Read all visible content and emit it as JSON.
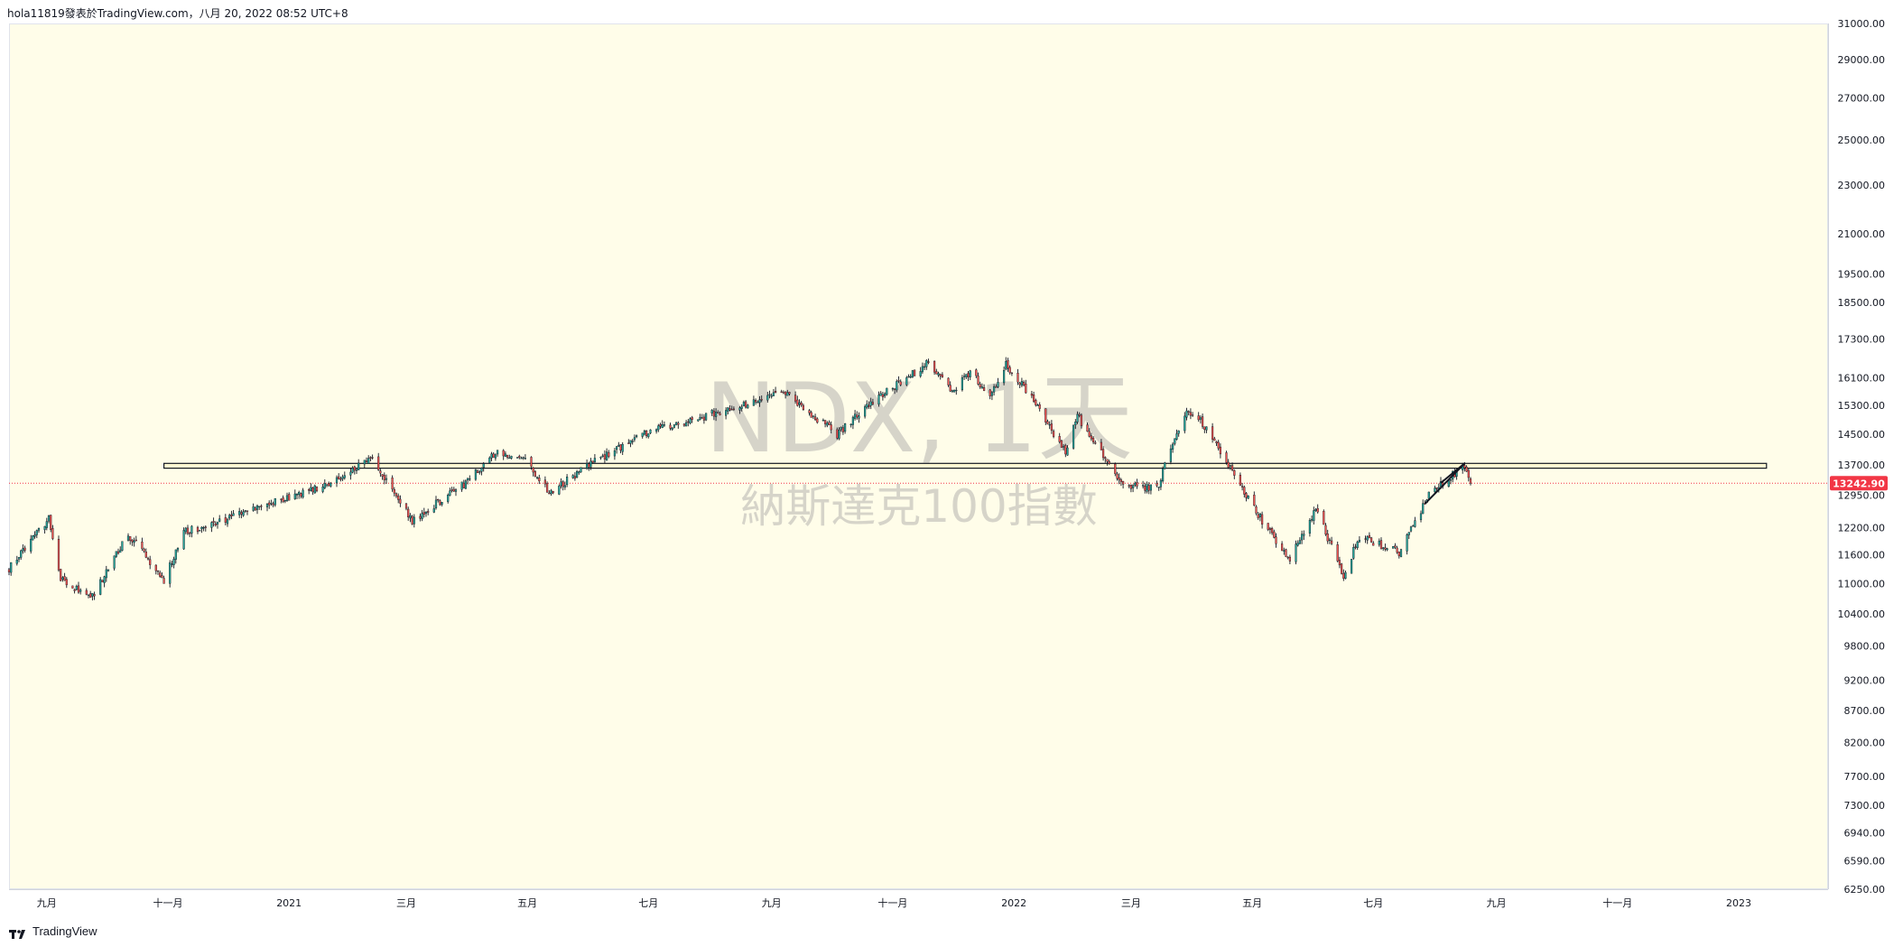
{
  "header": {
    "caption": "hola11819發表於TradingView.com，八月 20, 2022 08:52 UTC+8"
  },
  "footer": {
    "brand": "TradingView",
    "logo_icon": "tradingview-logo-icon"
  },
  "colors": {
    "background": "#fffde9",
    "up_candle": "#26a69a",
    "down_candle": "#ef5350",
    "wick": "#131722",
    "last_price_badge": "#f23645",
    "last_price_line": "#f23645",
    "horizontal_band": "#131722"
  },
  "chart_data": {
    "type": "candlestick",
    "symbol": "NDX",
    "interval": "1天",
    "description": "納斯達克100指數",
    "last_price": 13242.9,
    "last_price_label": "13242.90",
    "y_scale": "log",
    "ylim": [
      6250,
      31000
    ],
    "xlim": [
      "2020-08-13",
      "2023-02-15"
    ],
    "price_ticks": [
      "31000.00",
      "29000.00",
      "27000.00",
      "25000.00",
      "23000.00",
      "21000.00",
      "19500.00",
      "18500.00",
      "17300.00",
      "16100.00",
      "15300.00",
      "14500.00",
      "13700.00",
      "12950.00",
      "12200.00",
      "11600.00",
      "11000.00",
      "10400.00",
      "9800.00",
      "9200.00",
      "8700.00",
      "8200.00",
      "7700.00",
      "7300.00",
      "6940.00",
      "6590.00",
      "6250.00"
    ],
    "time_ticks": [
      {
        "label": "九月",
        "date": "2020-09-01"
      },
      {
        "label": "十一月",
        "date": "2020-11-01"
      },
      {
        "label": "2021",
        "date": "2021-01-01"
      },
      {
        "label": "三月",
        "date": "2021-03-01"
      },
      {
        "label": "五月",
        "date": "2021-05-01"
      },
      {
        "label": "七月",
        "date": "2021-07-01"
      },
      {
        "label": "九月",
        "date": "2021-09-01"
      },
      {
        "label": "十一月",
        "date": "2021-11-01"
      },
      {
        "label": "2022",
        "date": "2022-01-01"
      },
      {
        "label": "三月",
        "date": "2022-03-01"
      },
      {
        "label": "五月",
        "date": "2022-05-01"
      },
      {
        "label": "七月",
        "date": "2022-07-01"
      },
      {
        "label": "九月",
        "date": "2022-09-01"
      },
      {
        "label": "十一月",
        "date": "2022-11-01"
      },
      {
        "label": "2023",
        "date": "2023-01-01"
      }
    ],
    "price_path": [
      [
        "2020-08-13",
        11300
      ],
      [
        "2020-09-02",
        12420
      ],
      [
        "2020-09-08",
        11100
      ],
      [
        "2020-09-23",
        10680
      ],
      [
        "2020-10-12",
        12050
      ],
      [
        "2020-10-30",
        11050
      ],
      [
        "2020-11-09",
        12100
      ],
      [
        "2020-12-01",
        12400
      ],
      [
        "2020-12-31",
        12900
      ],
      [
        "2021-01-20",
        13200
      ],
      [
        "2021-02-12",
        13850
      ],
      [
        "2021-03-04",
        12350
      ],
      [
        "2021-03-31",
        13250
      ],
      [
        "2021-04-16",
        14050
      ],
      [
        "2021-04-30",
        13850
      ],
      [
        "2021-05-12",
        13000
      ],
      [
        "2021-06-01",
        13700
      ],
      [
        "2021-06-30",
        14550
      ],
      [
        "2021-07-30",
        15000
      ],
      [
        "2021-08-31",
        15550
      ],
      [
        "2021-09-07",
        15650
      ],
      [
        "2021-10-04",
        14500
      ],
      [
        "2021-10-21",
        15350
      ],
      [
        "2021-11-19",
        16550
      ],
      [
        "2021-12-01",
        15700
      ],
      [
        "2021-12-10",
        16300
      ],
      [
        "2021-12-20",
        15500
      ],
      [
        "2021-12-28",
        16500
      ],
      [
        "2022-01-10",
        15500
      ],
      [
        "2022-01-27",
        14000
      ],
      [
        "2022-02-02",
        15000
      ],
      [
        "2022-02-24",
        13200
      ],
      [
        "2022-03-14",
        13100
      ],
      [
        "2022-03-29",
        15200
      ],
      [
        "2022-04-05",
        14900
      ],
      [
        "2022-04-29",
        12850
      ],
      [
        "2022-05-12",
        11950
      ],
      [
        "2022-05-20",
        11500
      ],
      [
        "2022-06-02",
        12600
      ],
      [
        "2022-06-16",
        11150
      ],
      [
        "2022-06-24",
        12000
      ],
      [
        "2022-07-14",
        11650
      ],
      [
        "2022-07-29",
        12950
      ],
      [
        "2022-08-16",
        13700
      ],
      [
        "2022-08-19",
        13242.9
      ]
    ],
    "horizontal_band": {
      "top": 13740,
      "bottom": 13620,
      "from": "2020-10-30",
      "to": "2023-01-15"
    },
    "trend_lines": [
      {
        "from": [
          "2022-07-27",
          12750
        ],
        "to": [
          "2022-08-16",
          13740
        ]
      },
      {
        "from": [
          "2022-08-04",
          13250
        ],
        "to": [
          "2022-08-16",
          13740
        ]
      }
    ]
  }
}
